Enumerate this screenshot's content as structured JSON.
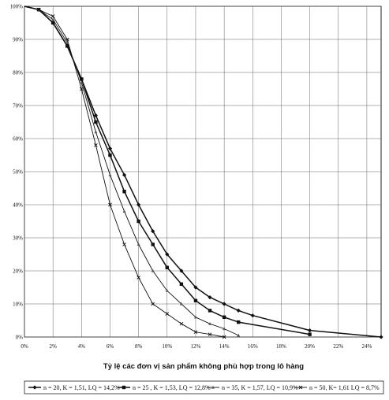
{
  "chart_data": {
    "type": "line",
    "xlabel": "Tỷ lệ các đơn vị sản phẩm không phù hợp trong lô  hàng",
    "ylabel": "",
    "x_ticks": [
      "0%",
      "2%",
      "4%",
      "6%",
      "8%",
      "10%",
      "12%",
      "14%",
      "16%",
      "18%",
      "20%",
      "22%",
      "24%"
    ],
    "y_ticks": [
      "0%",
      "10%",
      "20%",
      "30%",
      "40%",
      "50%",
      "60%",
      "70%",
      "80%",
      "90%",
      "100%"
    ],
    "xlim": [
      0,
      25
    ],
    "ylim": [
      0,
      100
    ],
    "grid": true,
    "legend_position": "bottom",
    "series": [
      {
        "name": "n = 20, K = 1,51, LQ = 14,2%",
        "marker": "diamond",
        "x": [
          0,
          1,
          2,
          3,
          4,
          5,
          6,
          7,
          8,
          9,
          10,
          11,
          12,
          13,
          14,
          15,
          16,
          20,
          25
        ],
        "y": [
          100,
          99,
          95,
          88,
          78,
          67,
          57,
          49,
          40,
          32,
          25,
          20,
          15,
          12,
          10,
          8,
          6.5,
          2,
          0
        ]
      },
      {
        "name": "n = 25 , K = 1,53, LQ = 12,8%",
        "marker": "square",
        "x": [
          0,
          1,
          2,
          3,
          4,
          5,
          6,
          7,
          8,
          9,
          10,
          11,
          12,
          13,
          14,
          15,
          20
        ],
        "y": [
          100,
          99,
          95,
          88,
          78,
          65,
          55,
          44,
          35,
          28,
          21,
          16,
          11,
          8,
          6,
          4.5,
          0.8
        ]
      },
      {
        "name": "n = 35, K = 1,57, LQ = 10,9%",
        "marker": "triangle",
        "x": [
          0,
          1,
          2,
          3,
          4,
          5,
          6,
          7,
          8,
          9,
          10,
          11,
          12,
          13,
          14,
          15
        ],
        "y": [
          100,
          99,
          96,
          89,
          77,
          62,
          49,
          38,
          28,
          20,
          14,
          10,
          6,
          4,
          2.5,
          0.5
        ]
      },
      {
        "name": "n = 50, K= 1,61 LQ = 8,7%",
        "marker": "x",
        "x": [
          0,
          1,
          2,
          3,
          4,
          5,
          6,
          7,
          8,
          9,
          10,
          11,
          12,
          13,
          14
        ],
        "y": [
          100,
          99,
          97,
          90,
          75,
          58,
          40,
          28,
          18,
          10,
          7,
          4,
          1.5,
          0.8,
          0
        ]
      }
    ]
  }
}
